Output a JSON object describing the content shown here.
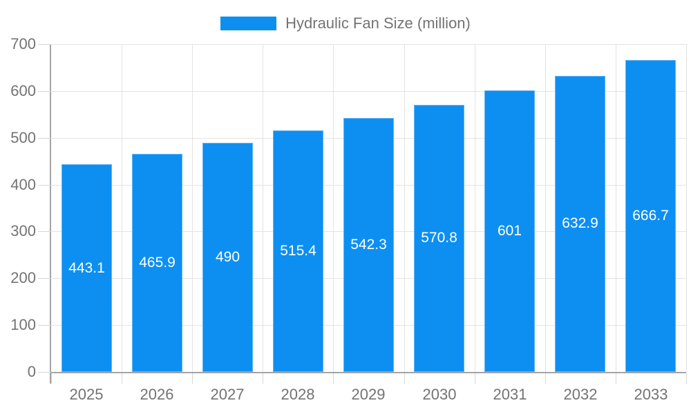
{
  "chart_data": {
    "type": "bar",
    "title": "",
    "legend": "Hydraulic Fan Size (million)",
    "legend_position": "top-center",
    "categories": [
      "2025",
      "2026",
      "2027",
      "2028",
      "2029",
      "2030",
      "2031",
      "2032",
      "2033"
    ],
    "values": [
      443.1,
      465.9,
      490,
      515.4,
      542.3,
      570.8,
      601,
      632.9,
      666.7
    ],
    "xlabel": "",
    "ylabel": "",
    "ylim": [
      0,
      700
    ],
    "ytick_step": 100,
    "grid": true,
    "value_labels_position": "inside-center",
    "colors": {
      "bar": "#0d8ff2",
      "bar_edge": "#5fb4f6",
      "bar_label": "#ffffff",
      "axis_line": "#a3a3a3",
      "grid_line": "#e3e3e3",
      "tick_line": "#d6d6d6",
      "axis_text": "#737373"
    }
  }
}
